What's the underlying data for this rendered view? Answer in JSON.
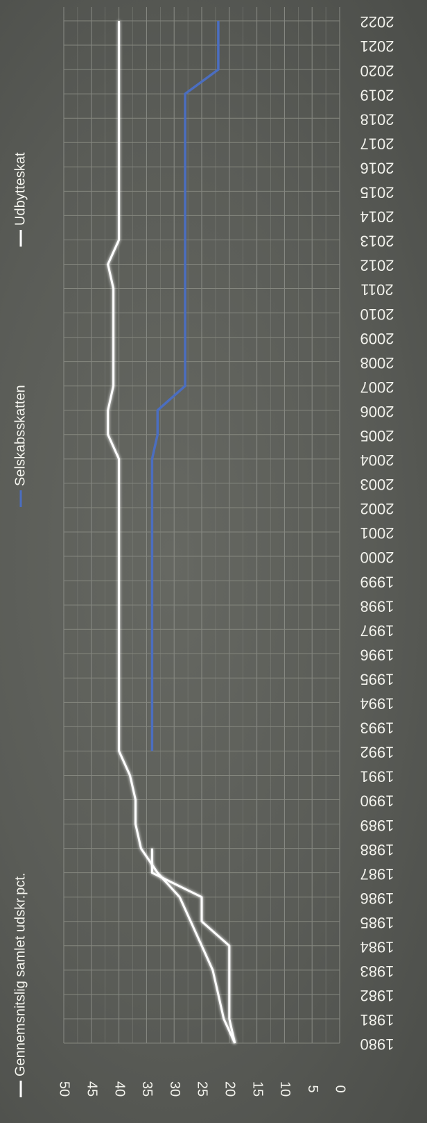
{
  "chart_data": {
    "type": "line",
    "orientation": "rotated-90-clockwise",
    "x": [
      1980,
      1981,
      1982,
      1983,
      1984,
      1985,
      1986,
      1987,
      1988,
      1989,
      1990,
      1991,
      1992,
      1993,
      1994,
      1995,
      1996,
      1997,
      1998,
      1999,
      2000,
      2001,
      2002,
      2003,
      2004,
      2005,
      2006,
      2007,
      2008,
      2009,
      2010,
      2011,
      2012,
      2013,
      2014,
      2015,
      2016,
      2017,
      2018,
      2019,
      2020,
      2021,
      2022
    ],
    "x_tick_labels": [
      "1980",
      "1981",
      "1982",
      "1983",
      "1984",
      "1985",
      "1986",
      "1987",
      "1988",
      "1989",
      "1990",
      "1991",
      "1992",
      "1993",
      "1994",
      "1995",
      "1996",
      "1997",
      "1998",
      "1999",
      "2000",
      "2001",
      "2002",
      "2003",
      "2004",
      "2005",
      "2006",
      "2007",
      "2008",
      "2009",
      "2010",
      "2011",
      "2012",
      "2013",
      "2014",
      "2015",
      "2016",
      "2017",
      "2018",
      "2019",
      "2020",
      "2021",
      "2022"
    ],
    "y_ticks": [
      0,
      5,
      10,
      15,
      20,
      25,
      30,
      35,
      40,
      45,
      50
    ],
    "y_tick_labels": [
      "0",
      "5",
      "10",
      "15",
      "20",
      "25",
      "30",
      "35",
      "40",
      "45",
      "50"
    ],
    "ylim": [
      0,
      50
    ],
    "grid": true,
    "legend_position": "left",
    "series": [
      {
        "name": "Gennemsnitslig samlet udskr.pct.",
        "color": "#ffffff",
        "x": [
          1980,
          1981,
          1982,
          1983,
          1984,
          1985,
          1986,
          1987,
          1988,
          1989,
          1990,
          1991,
          1992,
          1993,
          1994,
          1995,
          1996,
          1997,
          1998,
          1999,
          2000,
          2001,
          2002,
          2003,
          2004,
          2005,
          2006,
          2007,
          2008,
          2009,
          2010,
          2011,
          2012,
          2013,
          2014,
          2015,
          2016,
          2017,
          2018,
          2019,
          2020,
          2021,
          2022
        ],
        "values": [
          19,
          21,
          22,
          23,
          25,
          27,
          29,
          33,
          36,
          37,
          37,
          38,
          40,
          40,
          40,
          40,
          40,
          40,
          40,
          40,
          40,
          40,
          40,
          40,
          40,
          42,
          42,
          41,
          41,
          41,
          41,
          41,
          42,
          40,
          40,
          40,
          40,
          40,
          40,
          40,
          40,
          40,
          40
        ]
      },
      {
        "name": "Selskabsskatten",
        "color": "#4b6ec0",
        "x": [
          1992,
          1993,
          1994,
          1995,
          1996,
          1997,
          1998,
          1999,
          2000,
          2001,
          2002,
          2003,
          2004,
          2005,
          2006,
          2007,
          2008,
          2009,
          2010,
          2011,
          2012,
          2013,
          2014,
          2015,
          2016,
          2017,
          2018,
          2019,
          2020,
          2021,
          2022
        ],
        "values": [
          34,
          34,
          34,
          34,
          34,
          34,
          34,
          34,
          34,
          34,
          34,
          34,
          34,
          33,
          33,
          28,
          28,
          28,
          28,
          28,
          28,
          28,
          28,
          28,
          28,
          28,
          28,
          28,
          22,
          22,
          22
        ]
      },
      {
        "name": "Udbytteskat",
        "color": "#ffffff",
        "x": [
          1980,
          1981,
          1982,
          1983,
          1984,
          1985,
          1986,
          1987,
          1988
        ],
        "values": [
          19,
          20,
          20,
          20,
          20,
          25,
          25,
          34,
          34
        ]
      }
    ]
  }
}
